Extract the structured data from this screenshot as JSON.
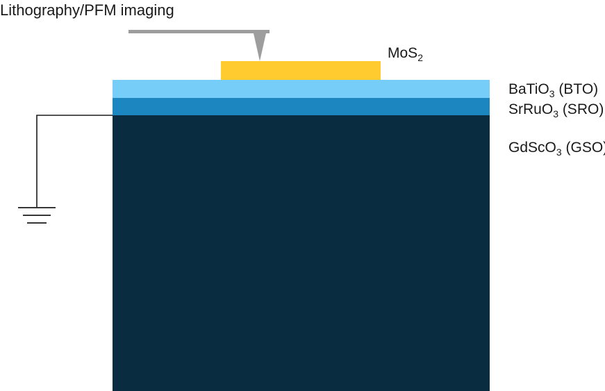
{
  "labels": {
    "title": "Lithography/PFM imaging",
    "mos2": {
      "main": "MoS",
      "sub": "2",
      "suffix": ""
    },
    "bto": {
      "main": "BaTiO",
      "sub": "3",
      "suffix": " (BTO)"
    },
    "sro": {
      "main": "SrRuO",
      "sub": "3",
      "suffix": " (SRO)"
    },
    "gso": {
      "main": "GdScO",
      "sub": "3",
      "suffix": " (GSO)"
    }
  },
  "colors": {
    "mos2": "#ffcb2f",
    "bto": "#76cdf8",
    "sro": "#1b86bf",
    "gso": "#0a2c40",
    "tip": "#9d9d9d",
    "wire": "#1a1a1a"
  },
  "icons": {
    "tip": "afm-tip-icon",
    "ground": "ground-symbol-icon"
  }
}
